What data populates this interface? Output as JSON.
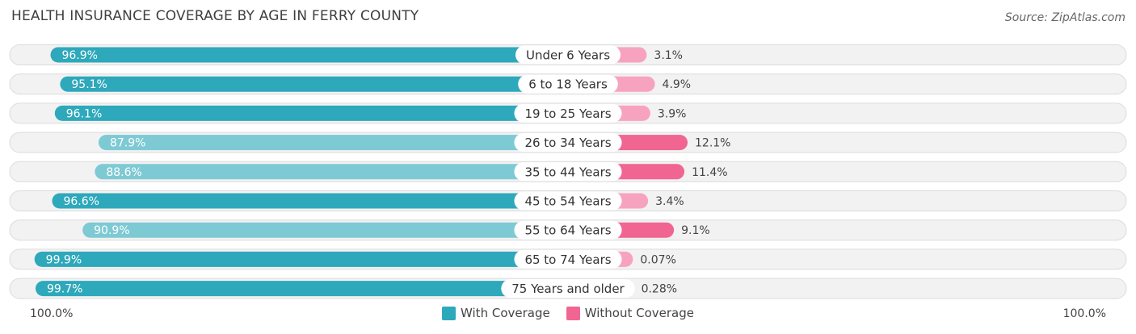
{
  "title": "HEALTH INSURANCE COVERAGE BY AGE IN FERRY COUNTY",
  "source": "Source: ZipAtlas.com",
  "axis": {
    "left_label": "100.0%",
    "right_label": "100.0%"
  },
  "legend": {
    "with_label": "With Coverage",
    "without_label": "Without Coverage"
  },
  "colors": {
    "with_dark": "#2ea8bb",
    "with_light": "#7dcad4",
    "without_dark": "#f06592",
    "without_light": "#f7a3bf",
    "row_bg": "#f2f2f2",
    "row_border": "#dcdcdc"
  },
  "chart_data": {
    "type": "bar",
    "orientation": "diverging-horizontal",
    "title": "HEALTH INSURANCE COVERAGE BY AGE IN FERRY COUNTY",
    "categories": [
      "Under 6 Years",
      "6 to 18 Years",
      "19 to 25 Years",
      "26 to 34 Years",
      "35 to 44 Years",
      "45 to 54 Years",
      "55 to 64 Years",
      "65 to 74 Years",
      "75 Years and older"
    ],
    "series": [
      {
        "name": "With Coverage",
        "values": [
          96.9,
          95.1,
          96.1,
          87.9,
          88.6,
          96.6,
          90.9,
          99.9,
          99.7
        ],
        "labels": [
          "96.9%",
          "95.1%",
          "96.1%",
          "87.9%",
          "88.6%",
          "96.6%",
          "90.9%",
          "99.9%",
          "99.7%"
        ]
      },
      {
        "name": "Without Coverage",
        "values": [
          3.1,
          4.9,
          3.9,
          12.1,
          11.4,
          3.4,
          9.1,
          0.07,
          0.28
        ],
        "labels": [
          "3.1%",
          "4.9%",
          "3.9%",
          "12.1%",
          "11.4%",
          "3.4%",
          "9.1%",
          "0.07%",
          "0.28%"
        ]
      }
    ],
    "xlim": [
      0,
      100
    ],
    "legend_position": "bottom-center"
  }
}
